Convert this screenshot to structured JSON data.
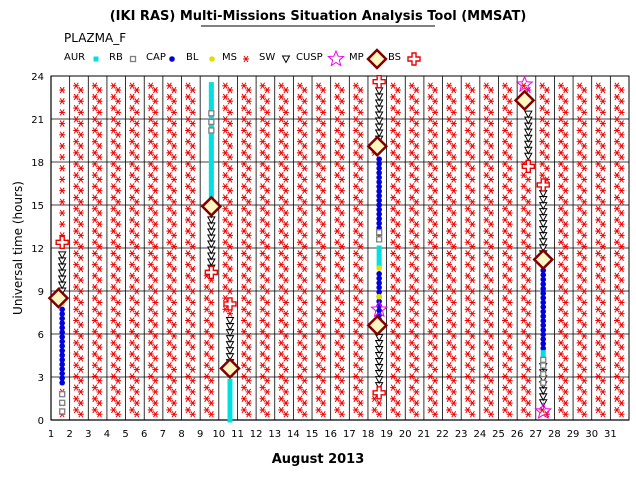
{
  "chart_data": {
    "type": "scatter",
    "title": "(IKI RAS) Multi-Missions Situation Analysis Tool (MMSAT)",
    "subtitle": "PLAZMA_F",
    "xlabel": "August 2013",
    "ylabel": "Universal time (hours)",
    "xlim": [
      1,
      32
    ],
    "ylim": [
      0,
      24
    ],
    "x_ticks": [
      1,
      2,
      3,
      4,
      5,
      6,
      7,
      8,
      9,
      10,
      11,
      12,
      13,
      14,
      15,
      16,
      17,
      18,
      19,
      20,
      21,
      22,
      23,
      24,
      25,
      26,
      27,
      28,
      29,
      30,
      31
    ],
    "y_ticks": [
      0,
      3,
      6,
      9,
      12,
      15,
      18,
      21,
      24
    ],
    "grid": true,
    "legend": [
      {
        "key": "aur",
        "label": "AUR",
        "color": "#00e0e0",
        "marker": "square-filled"
      },
      {
        "key": "rb",
        "label": "RB",
        "color": "#808080",
        "marker": "square-open"
      },
      {
        "key": "cap",
        "label": "CAP",
        "color": "#0000dd",
        "marker": "circle-filled"
      },
      {
        "key": "bl",
        "label": "BL",
        "color": "#e0e000",
        "marker": "circle-filled"
      },
      {
        "key": "ms",
        "label": "MS",
        "color": "#ee0000",
        "marker": "star-small"
      },
      {
        "key": "sw",
        "label": "SW",
        "color": "#000000",
        "marker": "triangle-down-open"
      },
      {
        "key": "cusp",
        "label": "CUSP",
        "color": "#ee0000",
        "marker": "star-small"
      },
      {
        "key": "mp",
        "label": "MP",
        "color": "#ee00ee",
        "marker": "star-open"
      },
      {
        "key": "bs",
        "label": "BS",
        "color": "#800000",
        "marker": "diamond"
      },
      {
        "key": "ex",
        "label": "",
        "color": "#ee0000",
        "marker": "cross-open"
      }
    ],
    "series": [
      {
        "key": "ms",
        "points": "background grid of MS points at every 0.5 day and every 0.75 h from day 1.5 to 31.5, excluding spans occupied by other regions"
      },
      {
        "key": "sw",
        "segments": [
          {
            "x": 1.6,
            "y0": 9.0,
            "y1": 11.8
          },
          {
            "x": 9.6,
            "y0": 10.6,
            "y1": 14.6
          },
          {
            "x": 10.6,
            "y0": 4.0,
            "y1": 7.0
          },
          {
            "x": 18.6,
            "y0": 2.4,
            "y1": 6.0
          },
          {
            "x": 18.6,
            "y0": 19.6,
            "y1": 23.2
          },
          {
            "x": 26.6,
            "y0": 18.4,
            "y1": 21.6
          },
          {
            "x": 27.4,
            "y0": 11.6,
            "y1": 16.0
          },
          {
            "x": 27.4,
            "y0": 1.2,
            "y1": 3.8
          }
        ]
      },
      {
        "key": "cap",
        "segments": [
          {
            "x": 1.6,
            "y0": 2.6,
            "y1": 7.8
          },
          {
            "x": 18.6,
            "y0": 7.0,
            "y1": 10.4
          },
          {
            "x": 18.6,
            "y0": 13.4,
            "y1": 18.2
          },
          {
            "x": 27.4,
            "y0": 5.0,
            "y1": 10.6
          }
        ]
      },
      {
        "key": "aur",
        "segments": [
          {
            "x": 9.6,
            "y0": 15.6,
            "y1": 23.6
          },
          {
            "x": 10.6,
            "y0": 0.0,
            "y1": 2.8
          },
          {
            "x": 18.6,
            "y0": 10.8,
            "y1": 12.2
          },
          {
            "x": 27.4,
            "y0": 4.4,
            "y1": 4.9
          }
        ]
      },
      {
        "key": "rb",
        "points": [
          {
            "x": 1.6,
            "y": 0.6
          },
          {
            "x": 1.6,
            "y": 1.2
          },
          {
            "x": 1.6,
            "y": 1.8
          },
          {
            "x": 9.6,
            "y": 20.2
          },
          {
            "x": 9.6,
            "y": 20.8
          },
          {
            "x": 9.6,
            "y": 21.4
          },
          {
            "x": 18.6,
            "y": 12.6
          },
          {
            "x": 18.6,
            "y": 13.1
          },
          {
            "x": 27.4,
            "y": 2.6
          },
          {
            "x": 27.4,
            "y": 3.2
          },
          {
            "x": 27.4,
            "y": 3.8
          },
          {
            "x": 27.4,
            "y": 4.2
          }
        ]
      },
      {
        "key": "bl",
        "points": [
          {
            "x": 1.6,
            "y": 8.2
          },
          {
            "x": 18.6,
            "y": 8.6
          },
          {
            "x": 18.6,
            "y": 10.6
          },
          {
            "x": 27.4,
            "y": 11.0
          }
        ]
      },
      {
        "key": "bs",
        "points": [
          {
            "x": 1.4,
            "y": 8.5
          },
          {
            "x": 9.6,
            "y": 14.9
          },
          {
            "x": 10.6,
            "y": 3.6
          },
          {
            "x": 18.5,
            "y": 6.6
          },
          {
            "x": 18.5,
            "y": 19.1
          },
          {
            "x": 26.4,
            "y": 22.3
          },
          {
            "x": 27.4,
            "y": 11.2
          }
        ]
      },
      {
        "key": "mp",
        "points": [
          {
            "x": 18.6,
            "y": 7.7
          },
          {
            "x": 26.4,
            "y": 23.4
          },
          {
            "x": 27.4,
            "y": 0.6
          }
        ]
      },
      {
        "key": "ex",
        "points": [
          {
            "x": 1.6,
            "y": 12.4
          },
          {
            "x": 9.6,
            "y": 10.3
          },
          {
            "x": 10.6,
            "y": 8.1
          },
          {
            "x": 18.6,
            "y": 1.9
          },
          {
            "x": 18.6,
            "y": 23.6
          },
          {
            "x": 26.6,
            "y": 17.7
          },
          {
            "x": 27.4,
            "y": 16.4
          }
        ]
      }
    ]
  }
}
